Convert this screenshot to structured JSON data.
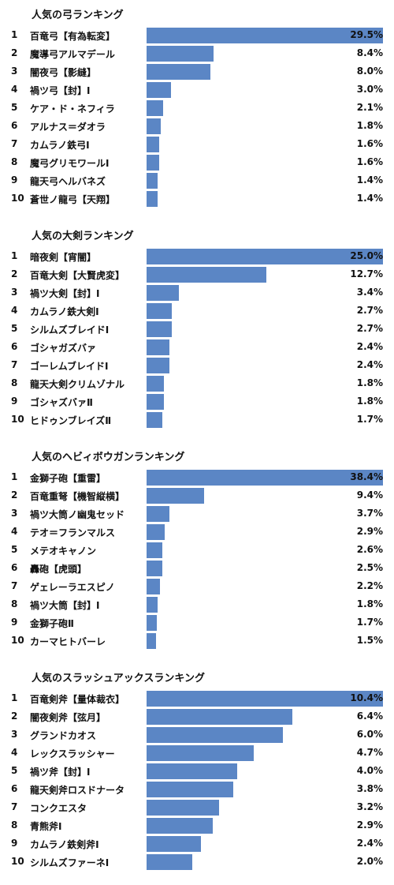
{
  "chart_data": [
    {
      "type": "bar",
      "title": "人気の弓ランキング",
      "ranks": [
        "1",
        "2",
        "3",
        "4",
        "5",
        "6",
        "7",
        "8",
        "9",
        "10"
      ],
      "categories": [
        "百竜弓【有為転変】",
        "魔導弓アルマデール",
        "闇夜弓【影縫】",
        "禍ツ弓【封】Ⅰ",
        "ケア・ド・ネフィラ",
        "アルナス＝ダオラ",
        "カムラノ鉄弓Ⅰ",
        "魔弓グリモワールⅠ",
        "龍天弓ヘルバネズ",
        "蒼世ノ龍弓【天翔】"
      ],
      "values": [
        29.5,
        8.4,
        8.0,
        3.0,
        2.1,
        1.8,
        1.6,
        1.6,
        1.4,
        1.4
      ],
      "labels": [
        "29.5%",
        "8.4%",
        "8.0%",
        "3.0%",
        "2.1%",
        "1.8%",
        "1.6%",
        "1.6%",
        "1.4%",
        "1.4%"
      ],
      "max": 29.5
    },
    {
      "type": "bar",
      "title": "人気の大剣ランキング",
      "ranks": [
        "1",
        "2",
        "3",
        "4",
        "5",
        "6",
        "7",
        "8",
        "9",
        "10"
      ],
      "categories": [
        "暗夜剣【宵闇】",
        "百竜大剣【大賢虎変】",
        "禍ツ大剣【封】Ⅰ",
        "カムラノ鉄大剣Ⅰ",
        "シルムズブレイドⅠ",
        "ゴシャガズバァ",
        "ゴーレムブレイドⅠ",
        "龍天大剣クリムゾナル",
        "ゴシャズバァⅡ",
        "ヒドゥンブレイズⅡ"
      ],
      "values": [
        25.0,
        12.7,
        3.4,
        2.7,
        2.7,
        2.4,
        2.4,
        1.8,
        1.8,
        1.7
      ],
      "labels": [
        "25.0%",
        "12.7%",
        "3.4%",
        "2.7%",
        "2.7%",
        "2.4%",
        "2.4%",
        "1.8%",
        "1.8%",
        "1.7%"
      ],
      "max": 25.0
    },
    {
      "type": "bar",
      "title": "人気のヘビィボウガンランキング",
      "ranks": [
        "1",
        "2",
        "3",
        "4",
        "5",
        "6",
        "7",
        "8",
        "9",
        "10"
      ],
      "categories": [
        "金獅子砲【重雷】",
        "百竜重弩【機智縦横】",
        "禍ツ大筒ノ幽鬼セッド",
        "テオ＝フランマルス",
        "メテオキャノン",
        "轟砲【虎頭】",
        "ゲェレーラエスピノ",
        "禍ツ大筒【封】Ⅰ",
        "金獅子砲Ⅱ",
        "カーマヒトバーレ"
      ],
      "values": [
        38.4,
        9.4,
        3.7,
        2.9,
        2.6,
        2.5,
        2.2,
        1.8,
        1.7,
        1.5
      ],
      "labels": [
        "38.4%",
        "9.4%",
        "3.7%",
        "2.9%",
        "2.6%",
        "2.5%",
        "2.2%",
        "1.8%",
        "1.7%",
        "1.5%"
      ],
      "max": 38.4
    },
    {
      "type": "bar",
      "title": "人気のスラッシュアックスランキング",
      "ranks": [
        "1",
        "2",
        "3",
        "4",
        "5",
        "6",
        "7",
        "8",
        "9",
        "10"
      ],
      "categories": [
        "百竜剣斧【量体裁衣】",
        "闇夜剣斧【弦月】",
        "グランドカオス",
        "レックスラッシャー",
        "禍ツ斧【封】Ⅰ",
        "龍天剣斧ロスドナータ",
        "コンクエスタ",
        "青熊斧Ⅰ",
        "カムラノ鉄剣斧Ⅰ",
        "シルムズファーネⅠ"
      ],
      "values": [
        10.4,
        6.4,
        6.0,
        4.7,
        4.0,
        3.8,
        3.2,
        2.9,
        2.4,
        2.0
      ],
      "labels": [
        "10.4%",
        "6.4%",
        "6.0%",
        "4.7%",
        "4.0%",
        "3.8%",
        "3.2%",
        "2.9%",
        "2.4%",
        "2.0%"
      ],
      "max": 10.4
    }
  ],
  "colors": {
    "bar": "#5b86c5",
    "text": "#111111"
  }
}
